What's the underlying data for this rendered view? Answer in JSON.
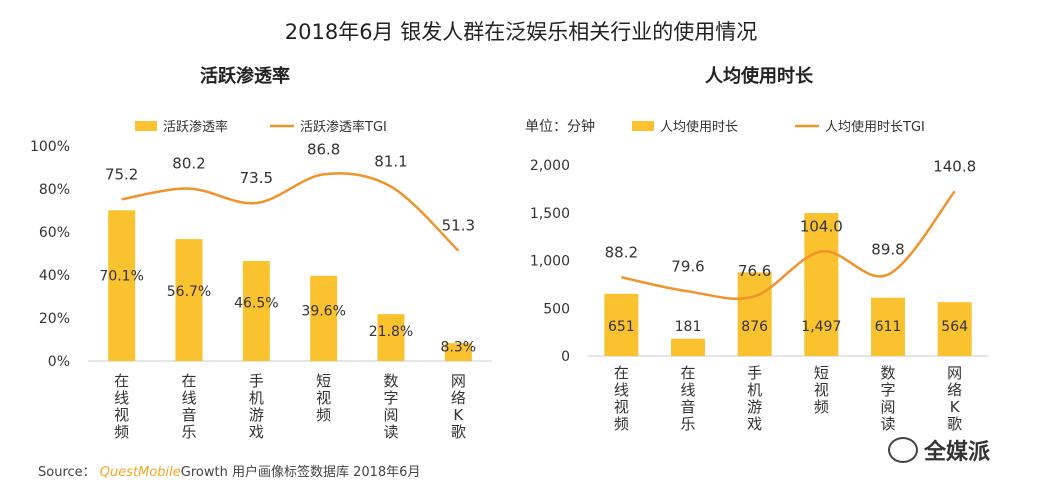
{
  "title": "2018年6月 银发人群在泛娱乐相关行业的使用情况",
  "source": {
    "prefix": "Source：",
    "brand": "QuestMobile",
    "rest": "Growth 用户画像标签数据库 2018年6月"
  },
  "watermark": "全媒派",
  "colors": {
    "bar": "#f9c22e",
    "line": "#f0932b"
  },
  "chart_data": [
    {
      "type": "bar",
      "title": "活跃渗透率",
      "categories": [
        "在线视频",
        "在线音乐",
        "手机游戏",
        "短视频",
        "数字阅读",
        "网络K歌"
      ],
      "category_lines": [
        [
          "在",
          "线",
          "视",
          "频"
        ],
        [
          "在",
          "线",
          "音",
          "乐"
        ],
        [
          "手",
          "机",
          "游",
          "戏"
        ],
        [
          "短",
          "视",
          "频"
        ],
        [
          "数",
          "字",
          "阅",
          "读"
        ],
        [
          "网",
          "络",
          "K",
          "歌"
        ]
      ],
      "series": [
        {
          "name": "活跃渗透率",
          "type": "bar",
          "values": [
            70.1,
            56.7,
            46.5,
            39.6,
            21.8,
            8.3
          ],
          "labels": [
            "70.1%",
            "56.7%",
            "46.5%",
            "39.6%",
            "21.8%",
            "8.3%"
          ]
        },
        {
          "name": "活跃渗透率TGI",
          "type": "line",
          "values": [
            75.2,
            80.2,
            73.5,
            86.8,
            81.1,
            51.3
          ],
          "labels": [
            "75.2",
            "80.2",
            "73.5",
            "86.8",
            "81.1",
            "51.3"
          ]
        }
      ],
      "yticks": [
        "0%",
        "20%",
        "40%",
        "60%",
        "80%",
        "100%"
      ],
      "ylim": [
        0,
        100
      ],
      "legend": "top"
    },
    {
      "type": "bar",
      "title": "人均使用时长",
      "unit": "单位：分钟",
      "categories": [
        "在线视频",
        "在线音乐",
        "手机游戏",
        "短视频",
        "数字阅读",
        "网络K歌"
      ],
      "category_lines": [
        [
          "在",
          "线",
          "视",
          "频"
        ],
        [
          "在",
          "线",
          "音",
          "乐"
        ],
        [
          "手",
          "机",
          "游",
          "戏"
        ],
        [
          "短",
          "视",
          "频"
        ],
        [
          "数",
          "字",
          "阅",
          "读"
        ],
        [
          "网",
          "络",
          "K",
          "歌"
        ]
      ],
      "series": [
        {
          "name": "人均使用时长",
          "type": "bar",
          "values": [
            651,
            181,
            876,
            1497,
            611,
            564
          ],
          "labels": [
            "651",
            "181",
            "876",
            "1,497",
            "611",
            "564"
          ]
        },
        {
          "name": "人均使用时长TGI",
          "type": "line",
          "values": [
            88.2,
            79.6,
            76.6,
            104.0,
            89.8,
            140.8
          ],
          "labels": [
            "88.2",
            "79.6",
            "76.6",
            "104.0",
            "89.8",
            "140.8"
          ]
        }
      ],
      "yticks": [
        "0",
        "500",
        "1,000",
        "1,500",
        "2,000"
      ],
      "ylim": [
        0,
        2000
      ],
      "legend": "top"
    }
  ]
}
